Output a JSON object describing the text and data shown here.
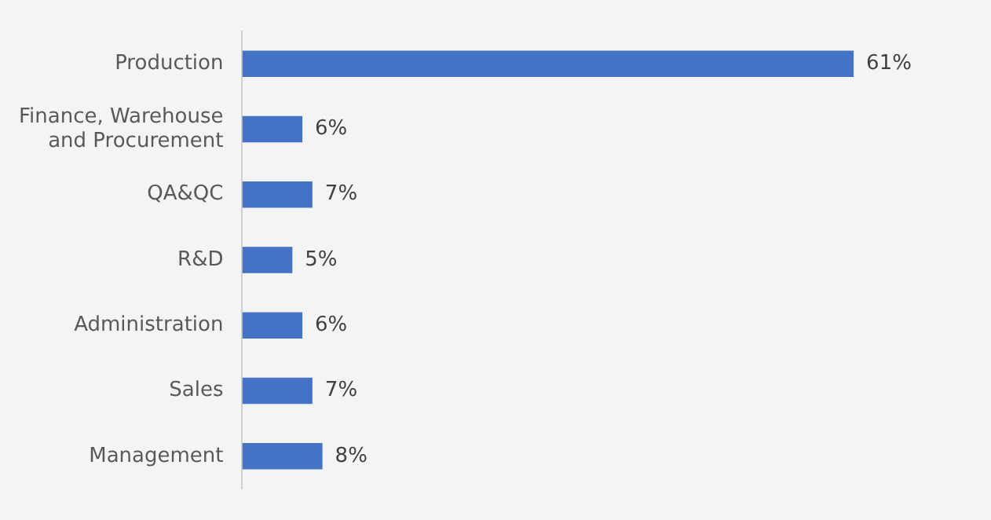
{
  "chart_data": {
    "type": "bar",
    "orientation": "horizontal",
    "categories": [
      "Production",
      "Finance, Warehouse and Procurement",
      "QA&QC",
      "R&D",
      "Administration",
      "Sales",
      "Management"
    ],
    "values": [
      61,
      6,
      7,
      5,
      6,
      7,
      8
    ],
    "value_labels": [
      "61%",
      "6%",
      "7%",
      "5%",
      "6%",
      "7%",
      "8%"
    ],
    "color": "#4472c4",
    "grid": false,
    "legend": false
  }
}
